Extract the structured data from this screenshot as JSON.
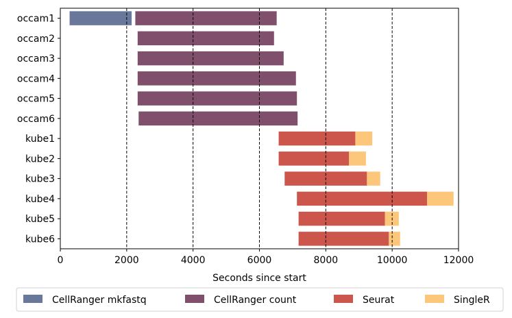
{
  "chart_data": {
    "type": "bar",
    "orientation": "horizontal",
    "stacked_timeline": true,
    "xlabel": "Seconds since start",
    "ylabel": "",
    "xlim": [
      0,
      12000
    ],
    "xticks": [
      0,
      2000,
      4000,
      6000,
      8000,
      10000,
      12000
    ],
    "grid": false,
    "reference_lines_x": [
      2000,
      4000,
      6000,
      8000,
      10000
    ],
    "legend_position": "bottom",
    "categories": [
      "occam1",
      "occam2",
      "occam3",
      "occam4",
      "occam5",
      "occam6",
      "kube1",
      "kube2",
      "kube3",
      "kube4",
      "kube5",
      "kube6"
    ],
    "series": [
      {
        "name": "CellRanger mkfastq",
        "color": "#68779a",
        "segments": [
          [
            280,
            2150
          ],
          null,
          null,
          null,
          null,
          null,
          null,
          null,
          null,
          null,
          null,
          null
        ]
      },
      {
        "name": "CellRanger count",
        "color": "#7f4f6b",
        "segments": [
          [
            2260,
            6520
          ],
          [
            2330,
            6440
          ],
          [
            2330,
            6730
          ],
          [
            2330,
            7100
          ],
          [
            2330,
            7130
          ],
          [
            2360,
            7150
          ],
          null,
          null,
          null,
          null,
          null,
          null
        ]
      },
      {
        "name": "Seurat",
        "color": "#cc554c",
        "segments": [
          null,
          null,
          null,
          null,
          null,
          null,
          [
            6580,
            8890
          ],
          [
            6580,
            8700
          ],
          [
            6760,
            9240
          ],
          [
            7130,
            11050
          ],
          [
            7180,
            9780
          ],
          [
            7180,
            9900
          ]
        ]
      },
      {
        "name": "SingleR",
        "color": "#fdc77b",
        "segments": [
          null,
          null,
          null,
          null,
          null,
          null,
          [
            8890,
            9400
          ],
          [
            8700,
            9210
          ],
          [
            9240,
            9640
          ],
          [
            11050,
            11850
          ],
          [
            9780,
            10200
          ],
          [
            9900,
            10240
          ]
        ]
      }
    ]
  }
}
